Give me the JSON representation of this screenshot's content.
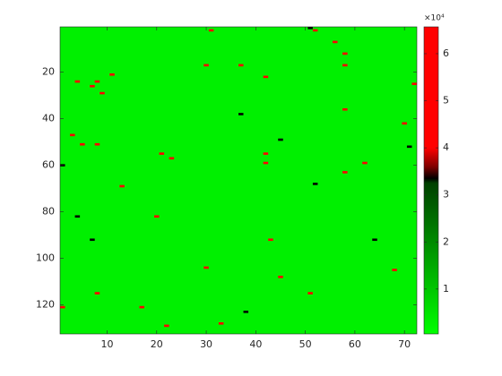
{
  "chart_data": {
    "type": "heatmap",
    "xlim": [
      0.5,
      72.5
    ],
    "ylim": [
      0.5,
      132.5
    ],
    "y_reversed": true,
    "xticks": [
      10,
      20,
      30,
      40,
      50,
      60,
      70
    ],
    "yticks": [
      20,
      40,
      60,
      80,
      100,
      120
    ],
    "fill_value": 3000,
    "cells": [
      [
        3,
        47,
        50000
      ],
      [
        5,
        51,
        48000
      ],
      [
        8,
        51,
        47000
      ],
      [
        11,
        21,
        48000
      ],
      [
        13,
        69,
        47000
      ],
      [
        8,
        24,
        46000
      ],
      [
        9,
        29,
        47000
      ],
      [
        7,
        26,
        46000
      ],
      [
        4,
        24,
        45000
      ],
      [
        23,
        57,
        47000
      ],
      [
        21,
        55,
        46000
      ],
      [
        20,
        82,
        48000
      ],
      [
        30,
        17,
        47000
      ],
      [
        31,
        2,
        48000
      ],
      [
        37,
        17,
        47000
      ],
      [
        42,
        22,
        46000
      ],
      [
        42,
        55,
        47000
      ],
      [
        42,
        59,
        45000
      ],
      [
        43,
        92,
        48000
      ],
      [
        45,
        108,
        47000
      ],
      [
        51,
        115,
        48000
      ],
      [
        30,
        104,
        49000
      ],
      [
        22,
        129,
        47000
      ],
      [
        33,
        128,
        46000
      ],
      [
        8,
        115,
        47000
      ],
      [
        1,
        121,
        48000
      ],
      [
        17,
        121,
        45000
      ],
      [
        52,
        2,
        46000
      ],
      [
        56,
        7,
        48000
      ],
      [
        58,
        17,
        50000
      ],
      [
        58,
        36,
        47000
      ],
      [
        58,
        63,
        49000
      ],
      [
        62,
        59,
        47000
      ],
      [
        68,
        105,
        48000
      ],
      [
        72,
        25,
        47000
      ],
      [
        70,
        42,
        46000
      ],
      [
        58,
        12,
        45000
      ],
      [
        1,
        60,
        33500
      ],
      [
        45,
        49,
        33500
      ],
      [
        37,
        38,
        33500
      ],
      [
        52,
        68,
        33500
      ],
      [
        64,
        92,
        33500
      ],
      [
        4,
        82,
        33500
      ],
      [
        7,
        92,
        33500
      ],
      [
        38,
        123,
        33500
      ],
      [
        71,
        52,
        33500
      ],
      [
        51,
        1,
        33500
      ]
    ],
    "clim": [
      460,
      65700
    ],
    "colormap": [
      [
        460,
        "#00ff00"
      ],
      [
        32500,
        "#004000"
      ],
      [
        33500,
        "#000000"
      ],
      [
        36000,
        "#800000"
      ],
      [
        40000,
        "#ff0000"
      ],
      [
        65700,
        "#ff0000"
      ]
    ],
    "colorbar_ticks": [
      {
        "value": 10000,
        "label": "1"
      },
      {
        "value": 20000,
        "label": "2"
      },
      {
        "value": 30000,
        "label": "3"
      },
      {
        "value": 40000,
        "label": "4"
      },
      {
        "value": 50000,
        "label": "5"
      },
      {
        "value": 60000,
        "label": "6"
      }
    ],
    "colorbar_exponent": "×10⁴"
  }
}
